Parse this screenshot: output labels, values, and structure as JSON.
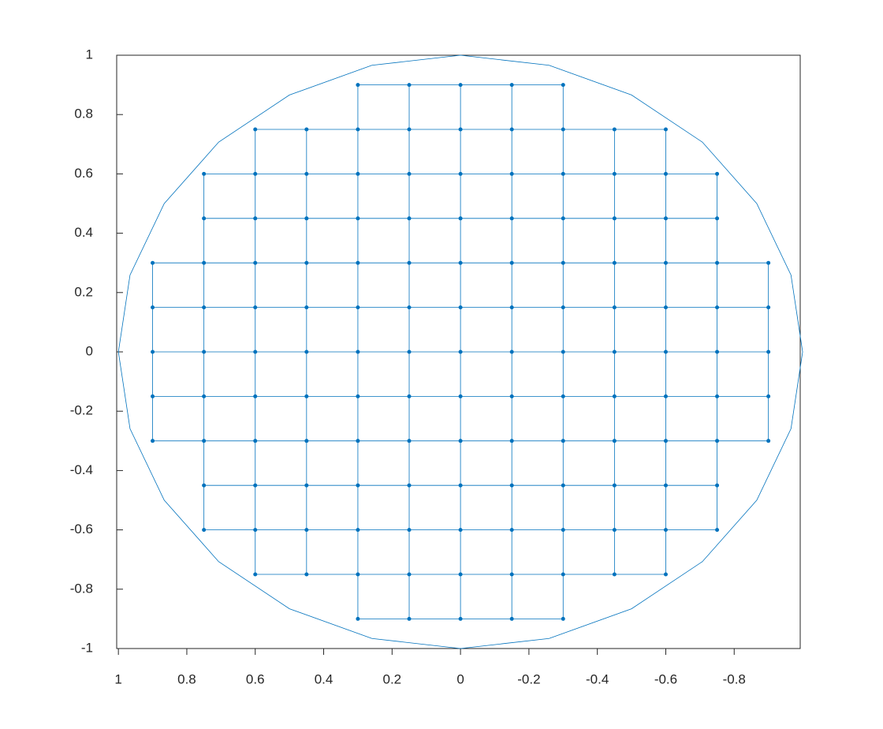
{
  "chart_data": {
    "type": "line",
    "color": "#0072bd",
    "xlim": [
      1.005,
      -0.993
    ],
    "ylim": [
      -1,
      1
    ],
    "xticks": [
      1,
      0.8,
      0.6,
      0.4,
      0.2,
      0,
      -0.2,
      -0.4,
      -0.6,
      -0.8
    ],
    "yticks": [
      -1,
      -0.8,
      -0.6,
      -0.4,
      -0.2,
      0,
      0.2,
      0.4,
      0.6,
      0.8,
      1
    ],
    "series": [
      {
        "markers": true,
        "x": [
          -0.3,
          -0.15,
          0,
          0.15,
          0.3
        ],
        "values": [
          0.9,
          0.9,
          0.9,
          0.9,
          0.9
        ]
      },
      {
        "markers": true,
        "x": [
          -0.6,
          -0.45,
          -0.3,
          -0.15,
          0,
          0.15,
          0.3,
          0.45,
          0.6
        ],
        "values": [
          0.75,
          0.75,
          0.75,
          0.75,
          0.75,
          0.75,
          0.75,
          0.75,
          0.75
        ]
      },
      {
        "markers": true,
        "x": [
          -0.75,
          -0.6,
          -0.45,
          -0.3,
          -0.15,
          0,
          0.15,
          0.3,
          0.45,
          0.6,
          0.75
        ],
        "values": [
          0.6,
          0.6,
          0.6,
          0.6,
          0.6,
          0.6,
          0.6,
          0.6,
          0.6,
          0.6,
          0.6
        ]
      },
      {
        "markers": true,
        "x": [
          -0.75,
          -0.6,
          -0.45,
          -0.3,
          -0.15,
          0,
          0.15,
          0.3,
          0.45,
          0.6,
          0.75
        ],
        "values": [
          0.45,
          0.45,
          0.45,
          0.45,
          0.45,
          0.45,
          0.45,
          0.45,
          0.45,
          0.45,
          0.45
        ]
      },
      {
        "markers": true,
        "x": [
          -0.9,
          -0.75,
          -0.6,
          -0.45,
          -0.3,
          -0.15,
          0,
          0.15,
          0.3,
          0.45,
          0.6,
          0.75,
          0.9
        ],
        "values": [
          0.3,
          0.3,
          0.3,
          0.3,
          0.3,
          0.3,
          0.3,
          0.3,
          0.3,
          0.3,
          0.3,
          0.3,
          0.3
        ]
      },
      {
        "markers": true,
        "x": [
          -0.9,
          -0.75,
          -0.6,
          -0.45,
          -0.3,
          -0.15,
          0,
          0.15,
          0.3,
          0.45,
          0.6,
          0.75,
          0.9
        ],
        "values": [
          0.15,
          0.15,
          0.15,
          0.15,
          0.15,
          0.15,
          0.15,
          0.15,
          0.15,
          0.15,
          0.15,
          0.15,
          0.15
        ]
      },
      {
        "markers": true,
        "x": [
          -0.9,
          -0.75,
          -0.6,
          -0.45,
          -0.3,
          -0.15,
          0,
          0.15,
          0.3,
          0.45,
          0.6,
          0.75,
          0.9
        ],
        "values": [
          0,
          0,
          0,
          0,
          0,
          0,
          0,
          0,
          0,
          0,
          0,
          0,
          0
        ]
      },
      {
        "markers": true,
        "x": [
          -0.9,
          -0.75,
          -0.6,
          -0.45,
          -0.3,
          -0.15,
          0,
          0.15,
          0.3,
          0.45,
          0.6,
          0.75,
          0.9
        ],
        "values": [
          -0.15,
          -0.15,
          -0.15,
          -0.15,
          -0.15,
          -0.15,
          -0.15,
          -0.15,
          -0.15,
          -0.15,
          -0.15,
          -0.15,
          -0.15
        ]
      },
      {
        "markers": true,
        "x": [
          -0.9,
          -0.75,
          -0.6,
          -0.45,
          -0.3,
          -0.15,
          0,
          0.15,
          0.3,
          0.45,
          0.6,
          0.75,
          0.9
        ],
        "values": [
          -0.3,
          -0.3,
          -0.3,
          -0.3,
          -0.3,
          -0.3,
          -0.3,
          -0.3,
          -0.3,
          -0.3,
          -0.3,
          -0.3,
          -0.3
        ]
      },
      {
        "markers": true,
        "x": [
          -0.75,
          -0.6,
          -0.45,
          -0.3,
          -0.15,
          0,
          0.15,
          0.3,
          0.45,
          0.6,
          0.75
        ],
        "values": [
          -0.45,
          -0.45,
          -0.45,
          -0.45,
          -0.45,
          -0.45,
          -0.45,
          -0.45,
          -0.45,
          -0.45,
          -0.45
        ]
      },
      {
        "markers": true,
        "x": [
          -0.75,
          -0.6,
          -0.45,
          -0.3,
          -0.15,
          0,
          0.15,
          0.3,
          0.45,
          0.6,
          0.75
        ],
        "values": [
          -0.6,
          -0.6,
          -0.6,
          -0.6,
          -0.6,
          -0.6,
          -0.6,
          -0.6,
          -0.6,
          -0.6,
          -0.6
        ]
      },
      {
        "markers": true,
        "x": [
          -0.6,
          -0.45,
          -0.3,
          -0.15,
          0,
          0.15,
          0.3,
          0.45,
          0.6
        ],
        "values": [
          -0.75,
          -0.75,
          -0.75,
          -0.75,
          -0.75,
          -0.75,
          -0.75,
          -0.75,
          -0.75
        ]
      },
      {
        "markers": true,
        "x": [
          -0.3,
          -0.15,
          0,
          0.15,
          0.3
        ],
        "values": [
          -0.9,
          -0.9,
          -0.9,
          -0.9,
          -0.9
        ]
      },
      {
        "markers": false,
        "x": [
          1,
          0.966,
          0.866,
          0.707,
          0.5,
          0.259,
          0,
          -0.259,
          -0.5,
          -0.707,
          -0.866,
          -0.966,
          -1,
          -0.966,
          -0.866,
          -0.707,
          -0.5,
          -0.259,
          0,
          0.259,
          0.5,
          0.707,
          0.866,
          0.966
        ],
        "values": [
          0,
          0.259,
          0.5,
          0.707,
          0.866,
          0.966,
          1,
          0.966,
          0.866,
          0.707,
          0.5,
          0.259,
          0,
          -0.259,
          -0.5,
          -0.707,
          -0.866,
          -0.966,
          -1,
          -0.966,
          -0.866,
          -0.707,
          -0.5,
          -0.259
        ]
      }
    ]
  }
}
